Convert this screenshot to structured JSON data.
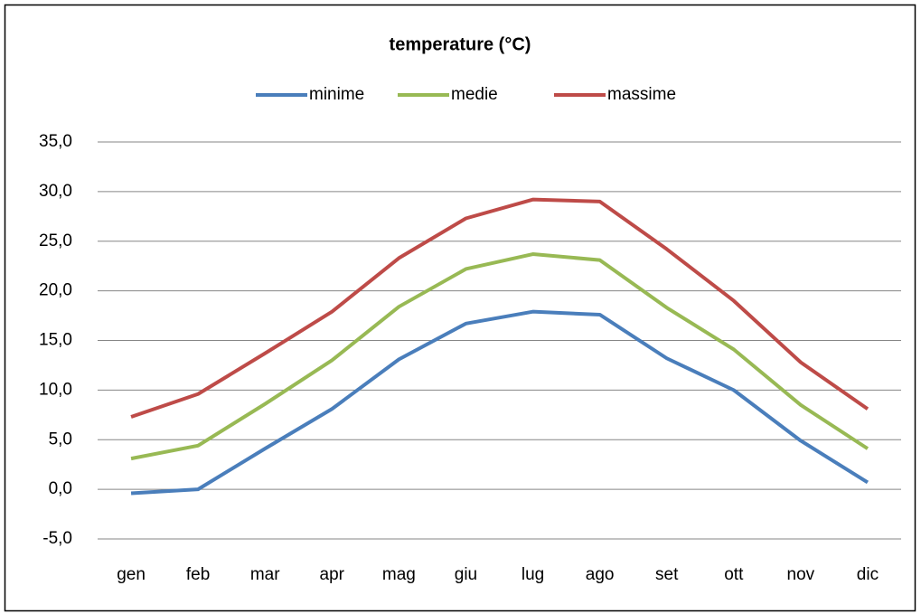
{
  "chart_data": {
    "type": "line",
    "title": "temperature (°C)",
    "categories": [
      "gen",
      "feb",
      "mar",
      "apr",
      "mag",
      "giu",
      "lug",
      "ago",
      "set",
      "ott",
      "nov",
      "dic"
    ],
    "series": [
      {
        "name": "minime",
        "color": "#4a7ebb",
        "values": [
          -0.4,
          0.0,
          4.1,
          8.1,
          13.1,
          16.7,
          17.9,
          17.6,
          13.2,
          10.0,
          4.9,
          0.7
        ]
      },
      {
        "name": "medie",
        "color": "#98b954",
        "values": [
          3.1,
          4.4,
          8.6,
          13.0,
          18.4,
          22.2,
          23.7,
          23.1,
          18.3,
          14.1,
          8.5,
          4.1
        ]
      },
      {
        "name": "massime",
        "color": "#be4b48",
        "values": [
          7.3,
          9.6,
          13.7,
          17.9,
          23.3,
          27.3,
          29.2,
          29.0,
          24.2,
          19.0,
          12.8,
          8.1
        ]
      }
    ],
    "ylim": [
      -5,
      35
    ],
    "yticks": [
      {
        "value": -5,
        "label": "-5,0"
      },
      {
        "value": 0,
        "label": "0,0"
      },
      {
        "value": 5,
        "label": "5,0"
      },
      {
        "value": 10,
        "label": "10,0"
      },
      {
        "value": 15,
        "label": "15,0"
      },
      {
        "value": 20,
        "label": "20,0"
      },
      {
        "value": 25,
        "label": "25,0"
      },
      {
        "value": 30,
        "label": "30,0"
      },
      {
        "value": 35,
        "label": "35,0"
      }
    ],
    "grid": true,
    "legend": "top"
  }
}
